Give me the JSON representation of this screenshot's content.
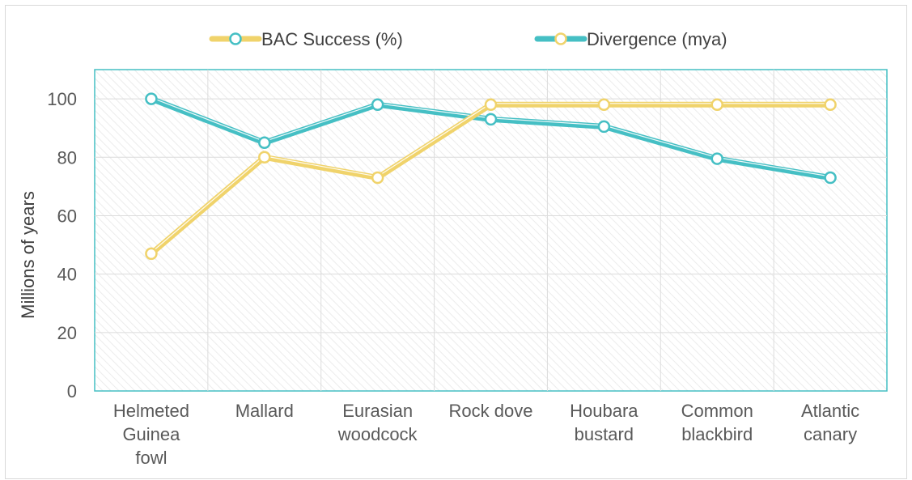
{
  "chart_data": {
    "type": "line",
    "title": "",
    "xlabel": "",
    "ylabel": "Millions of years",
    "ylim": [
      0,
      110
    ],
    "yticks": [
      0,
      20,
      40,
      60,
      80,
      100
    ],
    "grid": true,
    "legend_position": "top",
    "categories": [
      [
        "Helmeted",
        "Guinea",
        "fowl"
      ],
      [
        "Mallard"
      ],
      [
        "Eurasian",
        "woodcock"
      ],
      [
        "Rock dove"
      ],
      [
        "Houbara",
        "bustard"
      ],
      [
        "Common",
        "blackbird"
      ],
      [
        "Atlantic",
        "canary"
      ]
    ],
    "series": [
      {
        "name": "BAC Success (%)",
        "values": [
          100,
          85,
          98,
          93,
          90.5,
          79.5,
          73
        ],
        "line_color": "#45bfc4",
        "marker_color": "#45bfc4"
      },
      {
        "name": "Divergence (mya)",
        "values": [
          47,
          80,
          73,
          98,
          98,
          98,
          98
        ],
        "line_color": "#f0d36b",
        "marker_color": "#f0d36b"
      }
    ],
    "legend": [
      {
        "label": "BAC Success (%)",
        "line_color": "#f0d36b",
        "marker_color": "#45bfc4"
      },
      {
        "label": "Divergence (mya)",
        "line_color": "#45bfc4",
        "marker_color": "#f0d36b"
      }
    ],
    "plot_border_color": "#45bfc4"
  }
}
